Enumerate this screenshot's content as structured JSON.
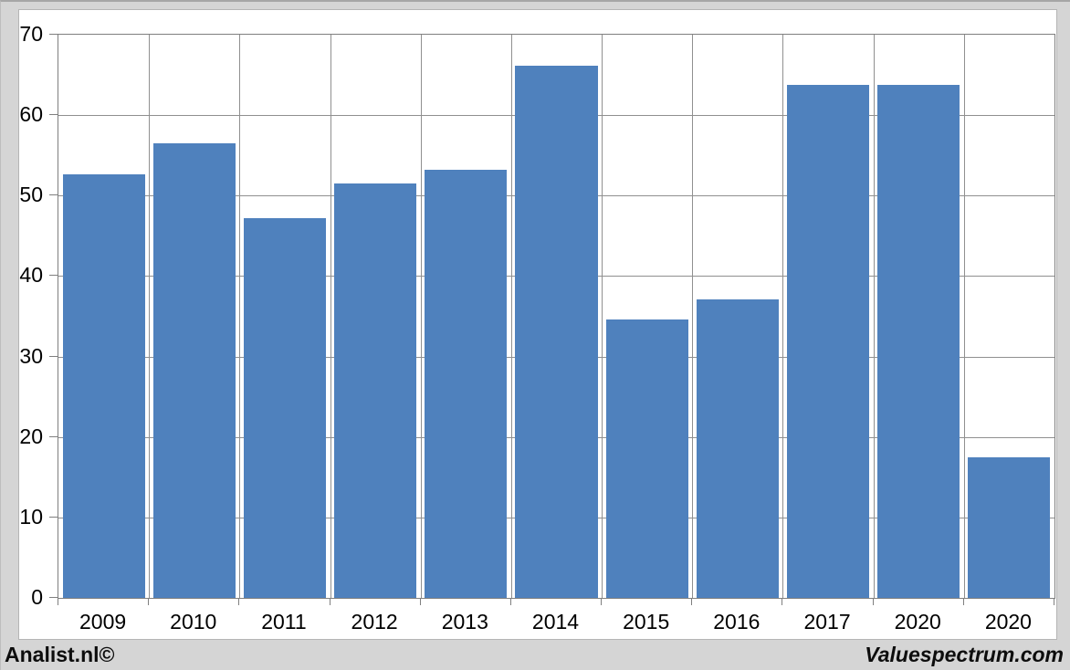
{
  "chart_data": {
    "type": "bar",
    "categories": [
      "2009",
      "2010",
      "2011",
      "2012",
      "2013",
      "2014",
      "2015",
      "2016",
      "2017",
      "2020",
      "2020"
    ],
    "values": [
      52.7,
      56.5,
      47.2,
      51.5,
      53.2,
      66.2,
      34.6,
      37.1,
      63.8,
      63.8,
      17.5
    ],
    "title": "",
    "xlabel": "",
    "ylabel": "",
    "ylim": [
      0,
      70
    ],
    "yticks": [
      0,
      10,
      20,
      30,
      40,
      50,
      60,
      70
    ],
    "grid": true,
    "legend": false,
    "bar_color": "#4f81bd",
    "gridline_color": "#909090",
    "axis_color": "#7f7f7f",
    "plot_background": "#ffffff",
    "canvas_background": "#d5d5d5"
  },
  "footer": {
    "left_text": "Analist.nl©",
    "right_text": "Valuespectrum.com"
  }
}
